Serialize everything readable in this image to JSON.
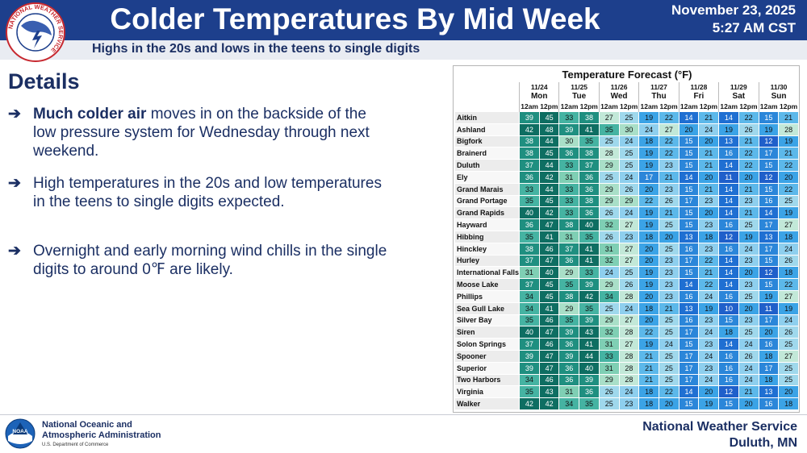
{
  "header": {
    "title": "Colder Temperatures By Mid Week",
    "date": "November 23, 2025",
    "time": "5:27 AM CST",
    "subtitle": "Highs in the 20s and lows in the teens to single digits",
    "logo_text": "NATIONAL WEATHER SERVICE"
  },
  "details": {
    "title": "Details",
    "bullets": [
      {
        "bold": "Much colder air",
        "text": " moves in on the backside of the low pressure system for Wednesday through next weekend."
      },
      {
        "bold": "",
        "text": "High temperatures in the 20s and low temperatures in the teens to single digits expected."
      },
      {
        "bold": "",
        "text": "Overnight and early morning wind chills in the single digits to around 0℉ are likely."
      }
    ]
  },
  "table": {
    "title": "Temperature Forecast (°F)",
    "dates": [
      "11/24",
      "11/25",
      "11/26",
      "11/27",
      "11/28",
      "11/29",
      "11/30"
    ],
    "days": [
      "Mon",
      "Tue",
      "Wed",
      "Thu",
      "Fri",
      "Sat",
      "Sun"
    ],
    "subcols": [
      "12am",
      "12pm"
    ],
    "rows": [
      {
        "city": "Aitkin",
        "v": [
          39,
          45,
          33,
          38,
          27,
          25,
          19,
          22,
          14,
          21,
          14,
          22,
          15,
          21
        ]
      },
      {
        "city": "Ashland",
        "v": [
          42,
          48,
          39,
          41,
          35,
          30,
          24,
          27,
          20,
          24,
          19,
          26,
          19,
          28
        ]
      },
      {
        "city": "Bigfork",
        "v": [
          38,
          44,
          30,
          35,
          25,
          24,
          18,
          22,
          15,
          20,
          13,
          21,
          12,
          19
        ]
      },
      {
        "city": "Brainerd",
        "v": [
          38,
          45,
          36,
          38,
          28,
          25,
          19,
          22,
          15,
          21,
          16,
          22,
          17,
          21
        ]
      },
      {
        "city": "Duluth",
        "v": [
          37,
          44,
          33,
          37,
          29,
          25,
          19,
          23,
          15,
          21,
          14,
          22,
          15,
          22
        ]
      },
      {
        "city": "Ely",
        "v": [
          36,
          42,
          31,
          36,
          25,
          24,
          17,
          21,
          14,
          20,
          11,
          20,
          12,
          20
        ]
      },
      {
        "city": "Grand Marais",
        "v": [
          33,
          44,
          33,
          36,
          29,
          26,
          20,
          23,
          15,
          21,
          14,
          21,
          15,
          22
        ]
      },
      {
        "city": "Grand Portage",
        "v": [
          35,
          45,
          33,
          38,
          29,
          29,
          22,
          26,
          17,
          23,
          14,
          23,
          16,
          25
        ]
      },
      {
        "city": "Grand Rapids",
        "v": [
          40,
          42,
          33,
          36,
          26,
          24,
          19,
          21,
          15,
          20,
          14,
          21,
          14,
          19
        ]
      },
      {
        "city": "Hayward",
        "v": [
          36,
          47,
          38,
          40,
          32,
          27,
          19,
          25,
          15,
          23,
          16,
          25,
          17,
          27
        ]
      },
      {
        "city": "Hibbing",
        "v": [
          35,
          41,
          31,
          35,
          26,
          23,
          18,
          20,
          13,
          18,
          12,
          19,
          13,
          18
        ]
      },
      {
        "city": "Hinckley",
        "v": [
          38,
          46,
          37,
          41,
          31,
          27,
          20,
          25,
          16,
          23,
          16,
          24,
          17,
          24
        ]
      },
      {
        "city": "Hurley",
        "v": [
          37,
          47,
          36,
          41,
          32,
          27,
          20,
          23,
          17,
          22,
          14,
          23,
          15,
          26
        ]
      },
      {
        "city": "International Falls",
        "v": [
          31,
          40,
          29,
          33,
          24,
          25,
          19,
          23,
          15,
          21,
          14,
          20,
          12,
          18
        ]
      },
      {
        "city": "Moose Lake",
        "v": [
          37,
          45,
          35,
          39,
          29,
          26,
          19,
          23,
          14,
          22,
          14,
          23,
          15,
          22
        ]
      },
      {
        "city": "Phillips",
        "v": [
          34,
          45,
          38,
          42,
          34,
          28,
          20,
          23,
          16,
          24,
          16,
          25,
          19,
          27
        ]
      },
      {
        "city": "Sea Gull Lake",
        "v": [
          34,
          41,
          29,
          35,
          25,
          24,
          18,
          21,
          13,
          19,
          10,
          20,
          11,
          19
        ]
      },
      {
        "city": "Silver Bay",
        "v": [
          35,
          46,
          35,
          39,
          29,
          27,
          20,
          25,
          16,
          23,
          15,
          23,
          17,
          24
        ]
      },
      {
        "city": "Siren",
        "v": [
          40,
          47,
          39,
          43,
          32,
          28,
          22,
          25,
          17,
          24,
          18,
          25,
          20,
          26
        ]
      },
      {
        "city": "Solon Springs",
        "v": [
          37,
          46,
          36,
          41,
          31,
          27,
          19,
          24,
          15,
          23,
          14,
          24,
          16,
          25
        ]
      },
      {
        "city": "Spooner",
        "v": [
          39,
          47,
          39,
          44,
          33,
          28,
          21,
          25,
          17,
          24,
          16,
          26,
          18,
          27
        ]
      },
      {
        "city": "Superior",
        "v": [
          39,
          47,
          36,
          40,
          31,
          28,
          21,
          25,
          17,
          23,
          16,
          24,
          17,
          25
        ]
      },
      {
        "city": "Two Harbors",
        "v": [
          34,
          46,
          36,
          39,
          29,
          28,
          21,
          25,
          17,
          24,
          16,
          24,
          18,
          25
        ]
      },
      {
        "city": "Virginia",
        "v": [
          35,
          43,
          31,
          36,
          26,
          24,
          18,
          22,
          14,
          20,
          12,
          21,
          13,
          20
        ]
      },
      {
        "city": "Walker",
        "v": [
          42,
          42,
          34,
          35,
          25,
          23,
          18,
          20,
          15,
          19,
          15,
          20,
          16,
          18
        ]
      }
    ]
  },
  "footer": {
    "noaa_line1": "National Oceanic and",
    "noaa_line2": "Atmospheric Administration",
    "noaa_line3": "U.S. Department of Commerce",
    "noaa_logo_text": "NOAA",
    "office_name": "National Weather Service",
    "office_city": "Duluth, MN"
  },
  "colors": {
    "header_bg": "#1d3f8c",
    "text_navy": "#1b2f63"
  }
}
